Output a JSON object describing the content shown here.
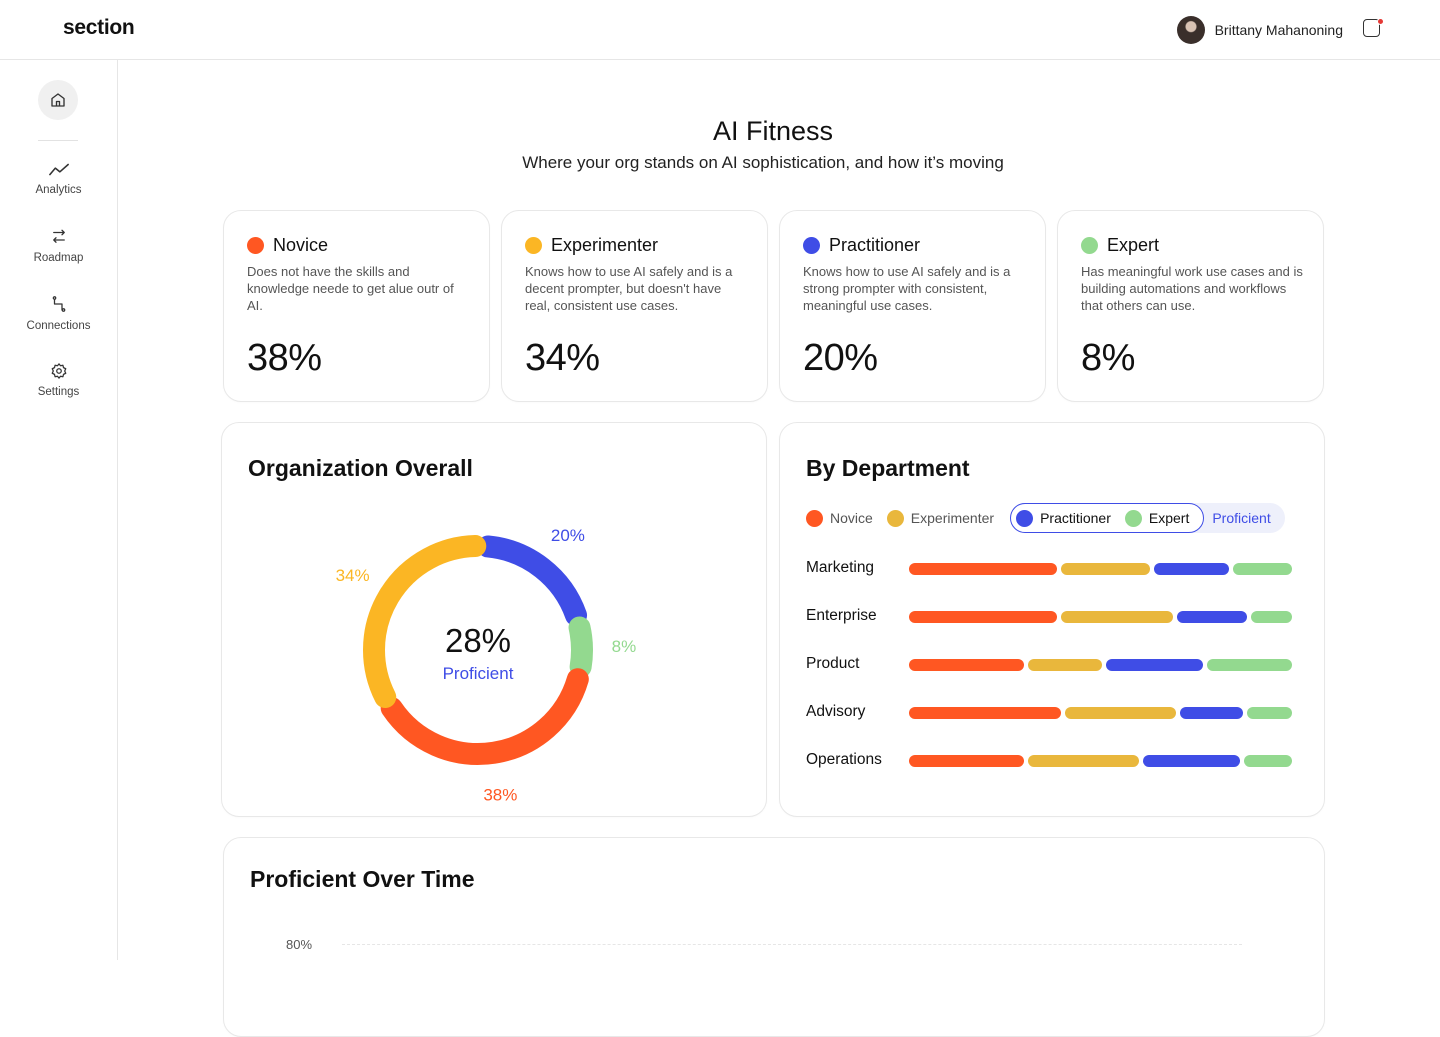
{
  "header": {
    "logo": "section",
    "user_name": "Brittany Mahanoning"
  },
  "sidebar": {
    "items": [
      {
        "label": "Analytics"
      },
      {
        "label": "Roadmap"
      },
      {
        "label": "Connections"
      },
      {
        "label": "Settings"
      }
    ]
  },
  "page": {
    "title": "AI Fitness",
    "subtitle": "Where your org stands on AI sophistication, and how it’s moving"
  },
  "levels": [
    {
      "name": "Novice",
      "desc": "Does not have the skills and knowledge neede to get alue outr of AI.",
      "pct": "38%",
      "color": "#ff5722"
    },
    {
      "name": "Experimenter",
      "desc": "Knows how to use AI safely and is a decent prompter, but doesn't have real, consistent use cases.",
      "pct": "34%",
      "color": "#fbb624"
    },
    {
      "name": "Practitioner",
      "desc": "Knows how to use AI safely and is a strong prompter with consistent, meaningful use cases.",
      "pct": "20%",
      "color": "#3f4de6"
    },
    {
      "name": "Expert",
      "desc": "Has meaningful work use cases and is building automations and workflows that others can use.",
      "pct": "8%",
      "color": "#93d98f"
    }
  ],
  "org_overall": {
    "title": "Organization Overall",
    "center_value": "28%",
    "center_label": "Proficient",
    "chart_data": {
      "type": "pie",
      "variant": "donut",
      "slices": [
        {
          "label": "Novice",
          "value": 38,
          "display": "38%",
          "color": "#ff5722"
        },
        {
          "label": "Experimenter",
          "value": 34,
          "display": "34%",
          "color": "#fbb624"
        },
        {
          "label": "Practitioner",
          "value": 20,
          "display": "20%",
          "color": "#3f4de6"
        },
        {
          "label": "Expert",
          "value": 8,
          "display": "8%",
          "color": "#93d98f"
        }
      ]
    }
  },
  "by_department": {
    "title": "By Department",
    "legend": {
      "novice": "Novice",
      "experimenter": "Experimenter",
      "practitioner": "Practitioner",
      "expert": "Expert",
      "proficient": "Proficient"
    },
    "chart_data": {
      "type": "bar",
      "orientation": "horizontal",
      "stacked": true,
      "categories": [
        "Marketing",
        "Enterprise",
        "Product",
        "Advisory",
        "Operations"
      ],
      "series": [
        {
          "name": "Novice",
          "color": "#ff5722",
          "values": [
            40,
            40,
            31,
            41,
            31
          ]
        },
        {
          "name": "Experimenter",
          "color": "#e9b73c",
          "values": [
            24,
            30,
            20,
            30,
            30
          ]
        },
        {
          "name": "Practitioner",
          "color": "#3f4de6",
          "values": [
            20,
            19,
            26,
            17,
            26
          ]
        },
        {
          "name": "Expert",
          "color": "#93d98f",
          "values": [
            16,
            11,
            23,
            12,
            13
          ]
        }
      ]
    }
  },
  "over_time": {
    "title": "Proficient Over Time",
    "chart_data": {
      "type": "line",
      "y_tick_labels": [
        "80%"
      ]
    }
  }
}
